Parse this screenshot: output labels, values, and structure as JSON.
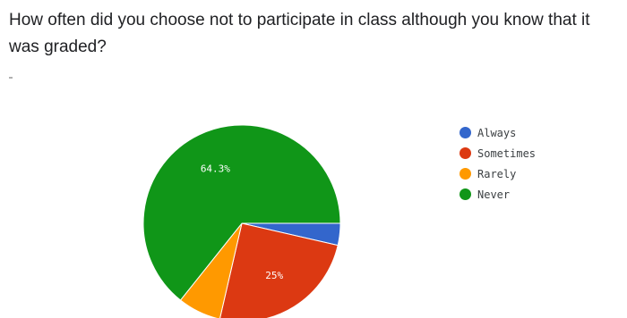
{
  "question": "How often did you choose not to participate in class although you know that it was graded?",
  "chart_data": {
    "type": "pie",
    "categories": [
      "Always",
      "Sometimes",
      "Rarely",
      "Never"
    ],
    "values": [
      3.6,
      25,
      7.1,
      64.3
    ],
    "value_labels": [
      "",
      "25%",
      "",
      "64.3%"
    ],
    "colors": [
      "#3366cc",
      "#dc3912",
      "#ff9900",
      "#109618"
    ],
    "legend": "right"
  }
}
